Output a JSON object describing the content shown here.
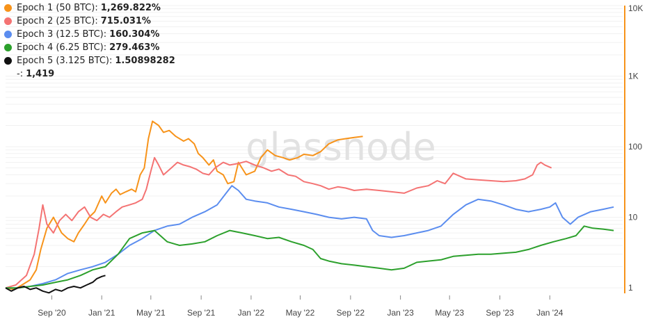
{
  "legend": {
    "items": [
      {
        "label": "Epoch 1 (50 BTC):",
        "value": "1,269.822%",
        "color": "#f7931a"
      },
      {
        "label": "Epoch 2 (25 BTC):",
        "value": "715.031%",
        "color": "#f47373"
      },
      {
        "label": "Epoch 3 (12.5 BTC):",
        "value": "160.304%",
        "color": "#5b8def"
      },
      {
        "label": "Epoch 4 (6.25 BTC):",
        "value": "279.463%",
        "color": "#2ca02c"
      },
      {
        "label": "Epoch 5 (3.125 BTC):",
        "value": "1.50898282",
        "color": "#111111"
      }
    ],
    "extra_label": "-:",
    "extra_value": "1,419"
  },
  "watermark": "glassnode",
  "chart_data": {
    "type": "line",
    "title": "",
    "xlabel": "",
    "ylabel": "",
    "y_scale": "log",
    "ylim": [
      0.8,
      10000
    ],
    "y_axis_position": "right",
    "y_axis_color": "#f7931a",
    "y_ticks": [
      1,
      10,
      100,
      1000,
      10000
    ],
    "y_tick_labels": [
      "1",
      "10",
      "100",
      "1K",
      "10K"
    ],
    "x_ticks": [
      "2020-09-01",
      "2021-01-01",
      "2021-05-01",
      "2021-09-01",
      "2022-01-01",
      "2022-05-01",
      "2022-09-01",
      "2023-01-01",
      "2023-05-01",
      "2023-09-01",
      "2024-01-01"
    ],
    "x_tick_labels": [
      "Sep '20",
      "Jan '21",
      "May '21",
      "Sep '21",
      "Jan '22",
      "May '22",
      "Sep '22",
      "Jan '23",
      "May '23",
      "Sep '23",
      "Jan '24"
    ],
    "xlim": [
      "2020-05-11",
      "2024-06-10"
    ],
    "grid": true,
    "legend_position": "top-left",
    "series": [
      {
        "name": "Epoch 1 (50 BTC)",
        "color": "#f7931a",
        "x": [
          "2020-05-11",
          "2020-06-01",
          "2020-06-20",
          "2020-07-10",
          "2020-07-25",
          "2020-08-05",
          "2020-08-20",
          "2020-09-05",
          "2020-09-25",
          "2020-10-10",
          "2020-10-25",
          "2020-11-05",
          "2020-11-20",
          "2020-12-01",
          "2020-12-15",
          "2021-01-01",
          "2021-01-10",
          "2021-01-25",
          "2021-02-05",
          "2021-02-15",
          "2021-03-01",
          "2021-03-15",
          "2021-03-25",
          "2021-04-05",
          "2021-04-15",
          "2021-04-25",
          "2021-05-05",
          "2021-05-20",
          "2021-06-01",
          "2021-06-15",
          "2021-07-01",
          "2021-07-20",
          "2021-08-01",
          "2021-08-15",
          "2021-08-25",
          "2021-09-05",
          "2021-09-20",
          "2021-10-01",
          "2021-10-10",
          "2021-10-25",
          "2021-11-05",
          "2021-11-20",
          "2021-12-01",
          "2021-12-20",
          "2022-01-10",
          "2022-01-25",
          "2022-02-10",
          "2022-03-01",
          "2022-03-20",
          "2022-04-05",
          "2022-04-25",
          "2022-05-10",
          "2022-06-01",
          "2022-06-20",
          "2022-07-10",
          "2022-08-01",
          "2022-08-20",
          "2022-09-10",
          "2022-10-01"
        ],
        "values": [
          1.0,
          0.95,
          1.1,
          1.3,
          1.8,
          3.5,
          7,
          10,
          6,
          5,
          4.5,
          6,
          8,
          10,
          12,
          20,
          16,
          22,
          25,
          21,
          23,
          25,
          23,
          40,
          50,
          130,
          230,
          200,
          160,
          170,
          140,
          120,
          130,
          110,
          80,
          70,
          55,
          65,
          45,
          40,
          30,
          32,
          60,
          40,
          45,
          70,
          90,
          75,
          70,
          65,
          70,
          78,
          75,
          85,
          110,
          125,
          130,
          135,
          140
        ]
      },
      {
        "name": "Epoch 2 (25 BTC)",
        "color": "#f47373",
        "x": [
          "2020-05-11",
          "2020-06-05",
          "2020-07-01",
          "2020-07-20",
          "2020-08-01",
          "2020-08-10",
          "2020-08-20",
          "2020-09-05",
          "2020-09-20",
          "2020-10-05",
          "2020-10-20",
          "2020-11-05",
          "2020-11-20",
          "2020-12-05",
          "2020-12-20",
          "2021-01-05",
          "2021-01-20",
          "2021-02-05",
          "2021-02-20",
          "2021-03-10",
          "2021-03-25",
          "2021-04-10",
          "2021-04-20",
          "2021-05-01",
          "2021-05-10",
          "2021-05-20",
          "2021-06-01",
          "2021-06-20",
          "2021-07-05",
          "2021-07-20",
          "2021-08-05",
          "2021-08-20",
          "2021-09-05",
          "2021-09-20",
          "2021-10-05",
          "2021-10-25",
          "2021-11-10",
          "2021-12-01",
          "2021-12-20",
          "2022-01-10",
          "2022-02-01",
          "2022-02-20",
          "2022-03-10",
          "2022-04-01",
          "2022-04-20",
          "2022-05-10",
          "2022-06-01",
          "2022-06-20",
          "2022-07-10",
          "2022-08-01",
          "2022-08-20",
          "2022-09-10",
          "2022-10-10",
          "2022-11-10",
          "2022-12-10",
          "2023-01-10",
          "2023-02-10",
          "2023-03-10",
          "2023-04-01",
          "2023-04-20",
          "2023-05-10",
          "2023-06-10",
          "2023-07-10",
          "2023-08-10",
          "2023-09-10",
          "2023-10-10",
          "2023-11-01",
          "2023-11-20",
          "2023-12-01",
          "2023-12-10",
          "2023-12-20",
          "2024-01-05"
        ],
        "values": [
          1.0,
          1.1,
          1.5,
          3,
          7,
          15,
          8,
          6,
          9,
          11,
          9,
          12,
          14,
          10,
          9,
          11,
          10,
          12,
          14,
          15,
          16,
          18,
          25,
          45,
          70,
          55,
          40,
          50,
          60,
          55,
          52,
          48,
          42,
          40,
          50,
          60,
          55,
          58,
          62,
          55,
          50,
          45,
          48,
          40,
          38,
          32,
          30,
          28,
          25,
          27,
          26,
          24,
          25,
          24,
          23,
          22,
          26,
          28,
          33,
          30,
          42,
          35,
          34,
          33,
          32,
          33,
          35,
          40,
          55,
          60,
          55,
          50
        ]
      },
      {
        "name": "Epoch 3 (12.5 BTC)",
        "color": "#5b8def",
        "x": [
          "2020-05-11",
          "2020-06-10",
          "2020-07-10",
          "2020-08-10",
          "2020-09-10",
          "2020-10-10",
          "2020-11-10",
          "2020-12-10",
          "2021-01-10",
          "2021-02-10",
          "2021-03-10",
          "2021-04-10",
          "2021-05-10",
          "2021-06-10",
          "2021-07-10",
          "2021-08-10",
          "2021-09-10",
          "2021-10-10",
          "2021-11-01",
          "2021-11-15",
          "2021-12-01",
          "2021-12-20",
          "2022-01-10",
          "2022-02-10",
          "2022-03-10",
          "2022-04-10",
          "2022-05-10",
          "2022-06-10",
          "2022-07-10",
          "2022-08-10",
          "2022-09-10",
          "2022-10-10",
          "2022-10-25",
          "2022-11-10",
          "2022-12-10",
          "2023-01-10",
          "2023-02-10",
          "2023-03-10",
          "2023-04-10",
          "2023-05-10",
          "2023-06-10",
          "2023-07-10",
          "2023-08-10",
          "2023-09-10",
          "2023-10-10",
          "2023-11-10",
          "2023-12-10",
          "2024-01-01",
          "2024-01-15",
          "2024-02-01",
          "2024-02-20",
          "2024-03-10",
          "2024-04-10",
          "2024-05-10",
          "2024-06-05"
        ],
        "values": [
          1.0,
          1.0,
          1.05,
          1.15,
          1.3,
          1.6,
          1.8,
          2.0,
          2.3,
          3.0,
          4.0,
          5.0,
          6.5,
          7.5,
          8,
          10,
          12,
          15,
          22,
          28,
          24,
          18,
          17,
          16,
          14,
          13,
          12,
          11,
          10,
          9.5,
          10,
          9.5,
          6.5,
          5.5,
          5.2,
          5.5,
          6,
          6.5,
          7.5,
          11,
          15,
          18,
          17,
          15,
          13,
          12,
          13,
          14,
          16,
          10,
          8,
          10,
          12,
          13,
          14
        ]
      },
      {
        "name": "Epoch 4 (6.25 BTC)",
        "color": "#2ca02c",
        "x": [
          "2020-05-11",
          "2020-06-10",
          "2020-07-10",
          "2020-08-10",
          "2020-09-10",
          "2020-10-10",
          "2020-11-10",
          "2020-12-10",
          "2021-01-10",
          "2021-02-10",
          "2021-03-10",
          "2021-04-10",
          "2021-05-10",
          "2021-06-10",
          "2021-07-10",
          "2021-08-10",
          "2021-09-10",
          "2021-10-10",
          "2021-11-10",
          "2021-12-10",
          "2022-01-10",
          "2022-02-10",
          "2022-03-10",
          "2022-04-10",
          "2022-05-10",
          "2022-06-01",
          "2022-06-20",
          "2022-07-10",
          "2022-08-10",
          "2022-09-10",
          "2022-10-10",
          "2022-11-10",
          "2022-12-10",
          "2023-01-10",
          "2023-02-10",
          "2023-03-10",
          "2023-04-10",
          "2023-05-10",
          "2023-06-10",
          "2023-07-10",
          "2023-08-10",
          "2023-09-10",
          "2023-10-10",
          "2023-11-10",
          "2023-12-10",
          "2024-01-10",
          "2024-02-10",
          "2024-03-05",
          "2024-03-25",
          "2024-04-15",
          "2024-05-10",
          "2024-06-05"
        ],
        "values": [
          1.0,
          1.0,
          1.05,
          1.1,
          1.2,
          1.3,
          1.5,
          1.8,
          2.0,
          3.0,
          5.0,
          6.0,
          6.5,
          4.5,
          4.0,
          4.2,
          4.5,
          5.5,
          6.5,
          6.0,
          5.5,
          5.0,
          5.2,
          4.5,
          4.0,
          3.5,
          2.6,
          2.4,
          2.2,
          2.1,
          2.0,
          1.9,
          1.8,
          1.9,
          2.3,
          2.4,
          2.5,
          2.8,
          2.9,
          3.0,
          3.0,
          3.1,
          3.2,
          3.5,
          4.0,
          4.5,
          5.0,
          5.5,
          7.5,
          7.0,
          6.8,
          6.5
        ]
      },
      {
        "name": "Epoch 5 (3.125 BTC)",
        "color": "#111111",
        "x": [
          "2020-05-11",
          "2020-05-25",
          "2020-06-10",
          "2020-06-25",
          "2020-07-10",
          "2020-07-25",
          "2020-08-10",
          "2020-08-25",
          "2020-09-10",
          "2020-09-25",
          "2020-10-10",
          "2020-10-25",
          "2020-11-10",
          "2020-11-25",
          "2020-12-10",
          "2020-12-20",
          "2021-01-01",
          "2021-01-10"
        ],
        "values": [
          1.0,
          0.9,
          1.0,
          1.05,
          0.95,
          1.0,
          0.9,
          0.85,
          0.95,
          0.9,
          1.0,
          1.05,
          1.0,
          1.1,
          1.2,
          1.35,
          1.45,
          1.5
        ]
      }
    ]
  }
}
